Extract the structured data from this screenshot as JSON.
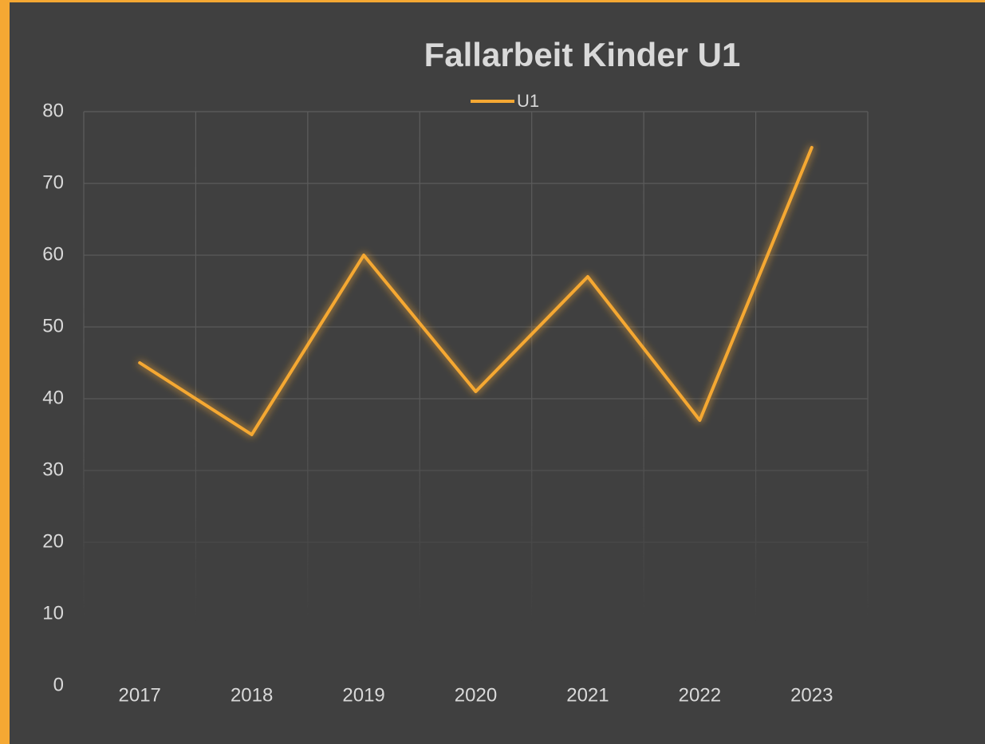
{
  "chart_data": {
    "type": "line",
    "title": "Fallarbeit  Kinder U1",
    "categories": [
      "2017",
      "2018",
      "2019",
      "2020",
      "2021",
      "2022",
      "2023"
    ],
    "series": [
      {
        "name": "U1",
        "color": "#f5a833",
        "values": [
          45,
          35,
          60,
          41,
          57,
          37,
          75
        ]
      }
    ],
    "ylim": [
      0,
      80
    ],
    "yticks": [
      0,
      10,
      20,
      30,
      40,
      50,
      60,
      70,
      80
    ],
    "grid": true,
    "legend": "top"
  }
}
